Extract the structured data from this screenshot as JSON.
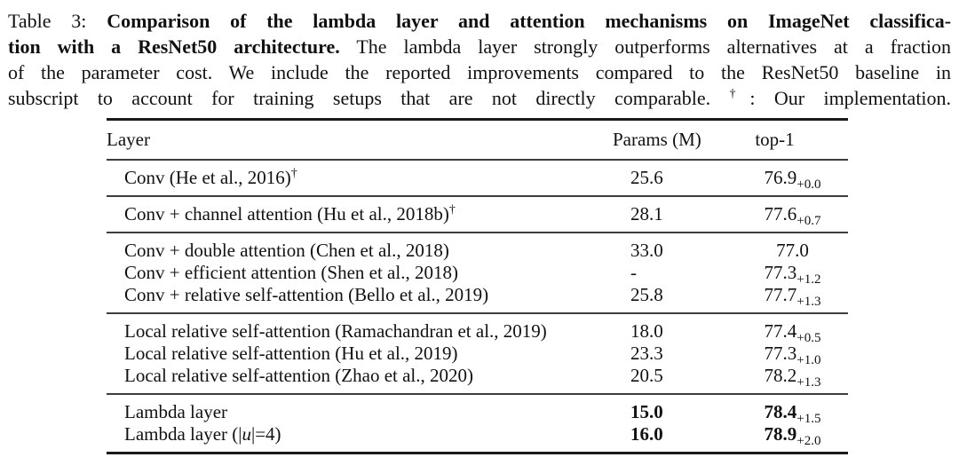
{
  "caption": {
    "label": "Table 3:",
    "line1_bold": "Comparison of the lambda layer and attention mechanisms on ImageNet classifica-",
    "line2_bold": "tion with a ResNet50 architecture.",
    "line2_rest": "The lambda layer strongly outperforms alternatives at a fraction",
    "line3": "of the parameter cost. We include the reported improvements compared to the ResNet50 baseline in",
    "line4_pre": "subscript to account for training setups that are not directly comparable.",
    "dagger_symbol": "†",
    "line4_post": ": Our implementation."
  },
  "table": {
    "headers": [
      "Layer",
      "Params (M)",
      "top-1"
    ],
    "groups": [
      {
        "rows": [
          {
            "layer": "Conv (He et al., 2016)",
            "sup": "†",
            "params": "25.6",
            "top1": "76.9",
            "delta": "+0.0"
          }
        ]
      },
      {
        "rows": [
          {
            "layer": "Conv + channel attention (Hu et al., 2018b)",
            "sup": "†",
            "params": "28.1",
            "top1": "77.6",
            "delta": "+0.7"
          }
        ]
      },
      {
        "rows": [
          {
            "layer": "Conv + double attention (Chen et al., 2018)",
            "sup": "",
            "params": "33.0",
            "top1": "77.0",
            "delta": ""
          },
          {
            "layer": "Conv + efficient attention (Shen et al., 2018)",
            "sup": "",
            "params": "-",
            "top1": "77.3",
            "delta": "+1.2"
          },
          {
            "layer": "Conv + relative self-attention (Bello et al., 2019)",
            "sup": "",
            "params": "25.8",
            "top1": "77.7",
            "delta": "+1.3"
          }
        ]
      },
      {
        "rows": [
          {
            "layer": "Local relative self-attention (Ramachandran et al., 2019)",
            "sup": "",
            "params": "18.0",
            "top1": "77.4",
            "delta": "+0.5"
          },
          {
            "layer": "Local relative self-attention (Hu et al., 2019)",
            "sup": "",
            "params": "23.3",
            "top1": "77.3",
            "delta": "+1.0"
          },
          {
            "layer": "Local relative self-attention (Zhao et al., 2020)",
            "sup": "",
            "params": "20.5",
            "top1": "78.2",
            "delta": "+1.3"
          }
        ]
      },
      {
        "rows": [
          {
            "layer": "Lambda layer",
            "sup": "",
            "params": "15.0",
            "top1": "78.4",
            "delta": "+1.5"
          },
          {
            "layer_pre": "Lambda layer (|",
            "layer_math": "u",
            "layer_post": "|=4)",
            "sup": "",
            "params": "16.0",
            "top1": "78.9",
            "delta": "+2.0"
          }
        ]
      }
    ]
  }
}
